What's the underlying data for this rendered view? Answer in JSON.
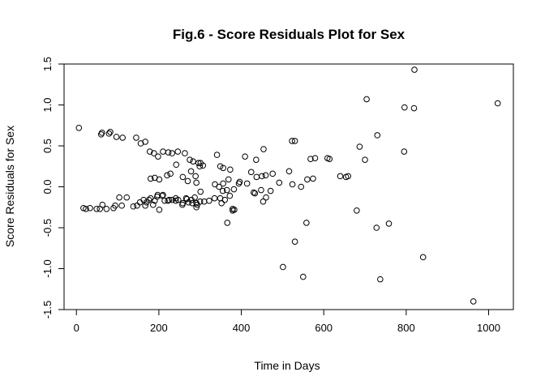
{
  "chart_data": {
    "type": "scatter",
    "title": "Fig.6 - Score Residuals Plot for Sex",
    "xlabel": "Time in Days",
    "ylabel": "Score Residuals for Sex",
    "xlim": [
      -30,
      1060
    ],
    "ylim": [
      -1.5,
      1.5
    ],
    "x_ticks": [
      0,
      200,
      400,
      600,
      800,
      1000
    ],
    "y_ticks": [
      -1.5,
      -1.0,
      -0.5,
      0.0,
      0.5,
      1.0,
      1.5
    ],
    "x_tick_labels": [
      "0",
      "200",
      "400",
      "600",
      "800",
      "1000"
    ],
    "y_tick_labels": [
      "-1.5",
      "-1.0",
      "-0.5",
      "0.0",
      "0.5",
      "1.0",
      "1.5"
    ],
    "grid": false,
    "marker": "open-circle",
    "color": "#000000",
    "series": [
      {
        "x": [
          6,
          17,
          23,
          33,
          49,
          57,
          63,
          73,
          90,
          94,
          104,
          110,
          122,
          138,
          147,
          154,
          163,
          167,
          170,
          176,
          180,
          186,
          190,
          196,
          201,
          208,
          214,
          225,
          232,
          241,
          247,
          257,
          266,
          272,
          279,
          287,
          293,
          300,
          310,
          322,
          335,
          349,
          352,
          360,
          366,
          379,
          383,
          396,
          414,
          433,
          453,
          460,
          471,
          492,
          60,
          62,
          79,
          82,
          97,
          112,
          145,
          156,
          167,
          178,
          188,
          198,
          210,
          223,
          232,
          246,
          263,
          275,
          283,
          296,
          301,
          307,
          341,
          349,
          356,
          409,
          424,
          436,
          454,
          516,
          530,
          545,
          568,
          579,
          609,
          180,
          190,
          201,
          220,
          228,
          242,
          258,
          270,
          278,
          289,
          291,
          299,
          336,
          356,
          369,
          382,
          394,
          437,
          450,
          459,
          476,
          524,
          560,
          574,
          614,
          640,
          654,
          687,
          700,
          197,
          210,
          222,
          241,
          258,
          268,
          281,
          291,
          301,
          355,
          365,
          372,
          379,
          430,
          448,
          291,
          346,
          373,
          501,
          530,
          550,
          558,
          659,
          680,
          728,
          737,
          758,
          795,
          819,
          841,
          963,
          1022,
          523,
          704,
          796,
          820,
          730
        ],
        "y": [
          0.72,
          -0.26,
          -0.27,
          -0.26,
          -0.27,
          -0.27,
          -0.22,
          -0.27,
          -0.26,
          -0.23,
          -0.13,
          -0.23,
          -0.13,
          -0.24,
          -0.23,
          -0.19,
          -0.16,
          -0.23,
          -0.19,
          -0.16,
          -0.14,
          -0.22,
          -0.17,
          -0.12,
          -0.28,
          -0.11,
          -0.17,
          -0.16,
          -0.16,
          -0.17,
          -0.16,
          -0.22,
          -0.14,
          -0.19,
          -0.16,
          -0.13,
          -0.22,
          -0.18,
          -0.18,
          -0.17,
          -0.14,
          -0.14,
          -0.2,
          -0.16,
          -0.44,
          -0.27,
          -0.28,
          0.06,
          0.04,
          -0.08,
          -0.18,
          -0.13,
          -0.05,
          0.05,
          0.64,
          0.66,
          0.65,
          0.67,
          0.61,
          0.6,
          0.6,
          0.53,
          0.55,
          0.43,
          0.41,
          0.37,
          0.43,
          0.42,
          0.41,
          0.43,
          0.41,
          0.33,
          0.31,
          0.29,
          0.29,
          0.26,
          0.39,
          0.25,
          0.23,
          0.37,
          0.18,
          0.33,
          0.46,
          0.19,
          0.56,
          0.0,
          0.34,
          0.35,
          0.35,
          0.1,
          0.11,
          0.09,
          0.14,
          0.16,
          0.27,
          0.12,
          0.07,
          0.19,
          0.13,
          0.05,
          0.25,
          0.03,
          0.04,
          0.09,
          -0.03,
          0.04,
          0.12,
          0.13,
          0.14,
          0.16,
          0.03,
          0.09,
          0.1,
          0.34,
          0.13,
          0.12,
          0.49,
          0.33,
          -0.1,
          -0.1,
          -0.17,
          -0.14,
          -0.2,
          -0.15,
          -0.2,
          -0.2,
          -0.06,
          -0.05,
          -0.04,
          -0.11,
          -0.29,
          -0.07,
          -0.04,
          -0.25,
          0.0,
          0.21,
          -0.98,
          -0.67,
          -1.1,
          -0.44,
          0.13,
          -0.29,
          -0.5,
          -1.13,
          -0.45,
          0.43,
          0.96,
          -0.86,
          -1.4,
          1.02,
          0.56,
          1.07,
          0.97,
          1.43,
          0.63
        ]
      }
    ]
  }
}
